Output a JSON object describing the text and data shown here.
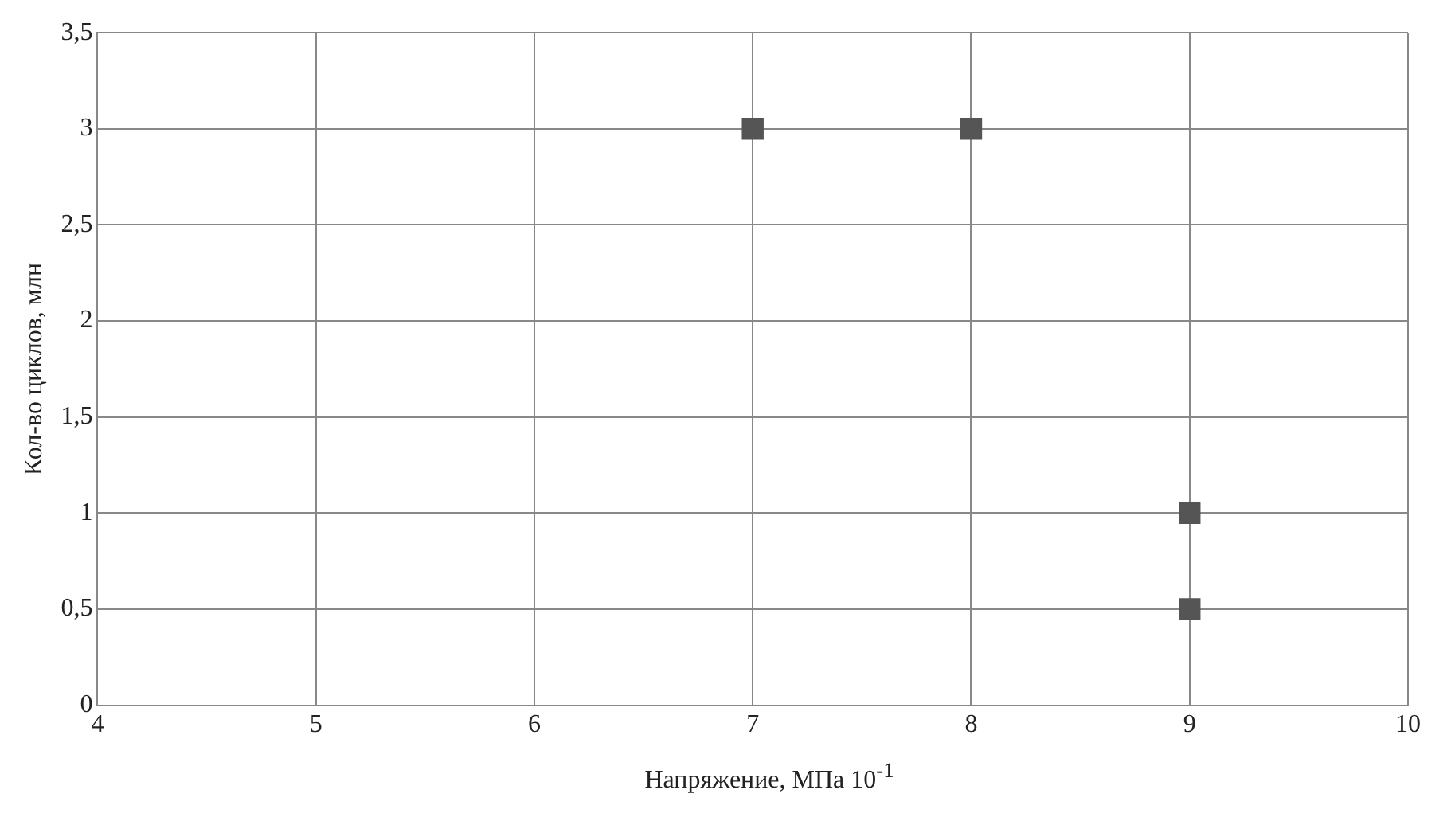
{
  "chart_data": {
    "type": "scatter",
    "xlabel": "Напряжение, МПа 10$^{-1}$",
    "ylabel": "Кол-во циклов, млн",
    "x": [
      7,
      8,
      9,
      9
    ],
    "values": [
      3,
      3,
      1,
      0.5
    ],
    "color": "#555555",
    "marker": "square",
    "xlim": [
      4,
      10
    ],
    "xticks": [
      4,
      5,
      6,
      7,
      8,
      9,
      10
    ],
    "ylim": [
      0,
      3.5
    ],
    "yticks": [
      0,
      {
        "value": 0.5,
        "label": "0,5"
      },
      1,
      {
        "value": 1.5,
        "label": "1,5"
      },
      2,
      {
        "value": 2.5,
        "label": "2,5"
      },
      3,
      {
        "value": 3.5,
        "label": "3,5"
      }
    ],
    "grid": true
  }
}
